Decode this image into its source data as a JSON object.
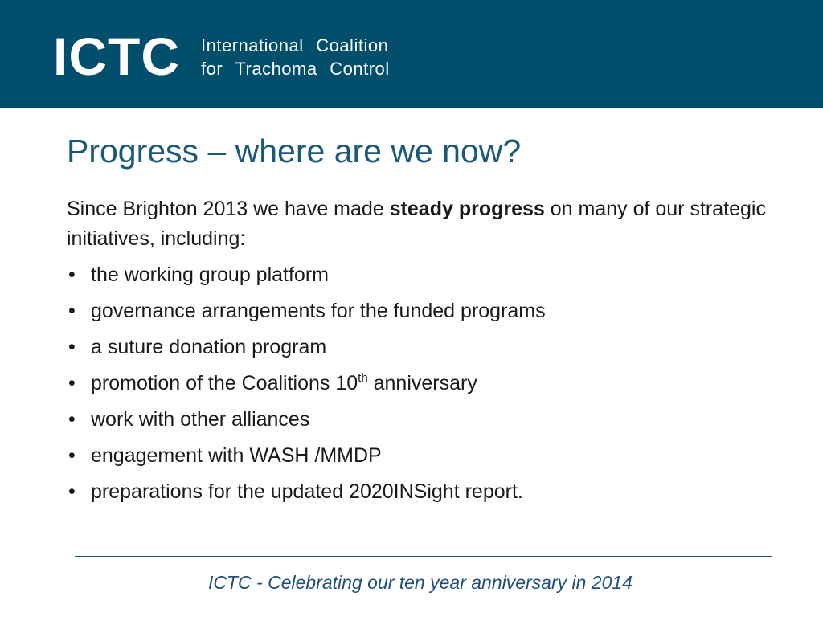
{
  "header": {
    "logo": "ICTC",
    "name_line_1": "International Coalition",
    "name_line_2": "for Trachoma Control"
  },
  "title": "Progress – where are we now?",
  "intro": {
    "before": "Since Brighton 2013 we have made",
    "bold": "steady progress",
    "after": "on many of our strategic initiatives, including:"
  },
  "bullets": [
    {
      "text": "the working group platform"
    },
    {
      "text": "governance arrangements for the funded programs"
    },
    {
      "text": "a suture donation program"
    },
    {
      "text": "promotion of the Coalitions 10",
      "superscript": "th",
      "after": "anniversary"
    },
    {
      "text": "work with other alliances"
    },
    {
      "text": "engagement with WASH /MMDP"
    },
    {
      "text": "preparations for the updated 2020INSight report."
    }
  ],
  "footer": "ICTC - Celebrating our ten year anniversary in 2014"
}
